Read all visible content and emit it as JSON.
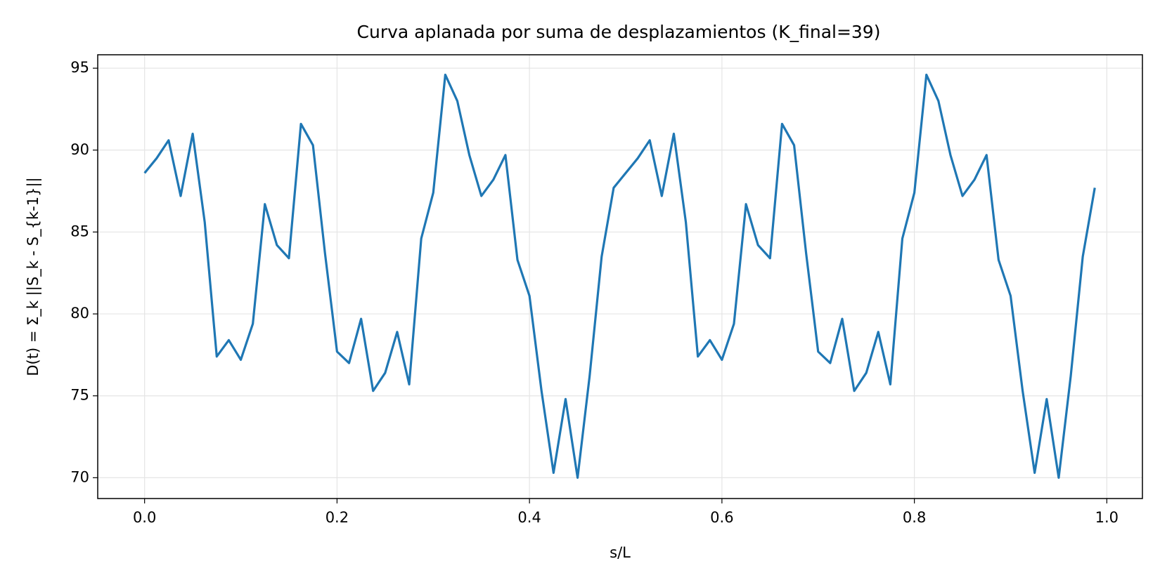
{
  "chart_data": {
    "type": "line",
    "title": "Curva aplanada por suma de desplazamientos (K_final=39)",
    "xlabel": "s/L",
    "ylabel": "D(t) = Σ_k ||S_k - S_{k-1}||",
    "x": [
      0,
      0.0125,
      0.025,
      0.0375,
      0.05,
      0.0625,
      0.075,
      0.0875,
      0.1,
      0.1125,
      0.125,
      0.1375,
      0.15,
      0.1625,
      0.175,
      0.1875,
      0.2,
      0.2125,
      0.225,
      0.2375,
      0.25,
      0.2625,
      0.275,
      0.2875,
      0.3,
      0.3125,
      0.325,
      0.3375,
      0.35,
      0.3625,
      0.375,
      0.3875,
      0.4,
      0.4125,
      0.425,
      0.4375,
      0.45,
      0.4625,
      0.475,
      0.4875,
      0.5,
      0.5125,
      0.525,
      0.5375,
      0.55,
      0.5625,
      0.575,
      0.5875,
      0.6,
      0.6125,
      0.625,
      0.6375,
      0.65,
      0.6625,
      0.675,
      0.6875,
      0.7,
      0.7125,
      0.725,
      0.7375,
      0.75,
      0.7625,
      0.775,
      0.7875,
      0.8,
      0.8125,
      0.825,
      0.8375,
      0.85,
      0.8625,
      0.875,
      0.8875,
      0.9,
      0.9125,
      0.925,
      0.9375,
      0.95,
      0.9625,
      0.975,
      0.9875
    ],
    "series": [
      {
        "color": "#1f77b4",
        "values": [
          88.6,
          89.5,
          90.6,
          87.2,
          91.0,
          85.6,
          77.4,
          78.4,
          77.2,
          79.4,
          86.7,
          84.2,
          83.4,
          91.6,
          90.3,
          83.7,
          77.7,
          77.0,
          79.7,
          75.3,
          76.4,
          78.9,
          75.7,
          84.6,
          87.4,
          94.6,
          93.0,
          89.7,
          87.2,
          88.2,
          89.7,
          83.3,
          81.1,
          75.3,
          70.3,
          74.8,
          70.0,
          76.2,
          83.5,
          87.7,
          88.6,
          89.5,
          90.6,
          87.2,
          91.0,
          85.6,
          77.4,
          78.4,
          77.2,
          79.4,
          86.7,
          84.2,
          83.4,
          91.6,
          90.3,
          83.7,
          77.7,
          77.0,
          79.7,
          75.3,
          76.4,
          78.9,
          75.7,
          84.6,
          87.4,
          94.6,
          93.0,
          89.7,
          87.2,
          88.2,
          89.7,
          83.3,
          81.1,
          75.3,
          70.3,
          74.8,
          70.0,
          76.2,
          83.5,
          87.7
        ]
      }
    ],
    "xlim": [
      -0.0487,
      1.037
    ],
    "ylim": [
      68.73,
      95.82
    ],
    "xticks": [
      {
        "value": 0,
        "label": "0.0"
      },
      0.2,
      0.4,
      0.6,
      0.8,
      {
        "value": 1,
        "label": "1.0"
      }
    ],
    "yticks": [
      70,
      75,
      80,
      85,
      90,
      95
    ],
    "grid": true
  }
}
